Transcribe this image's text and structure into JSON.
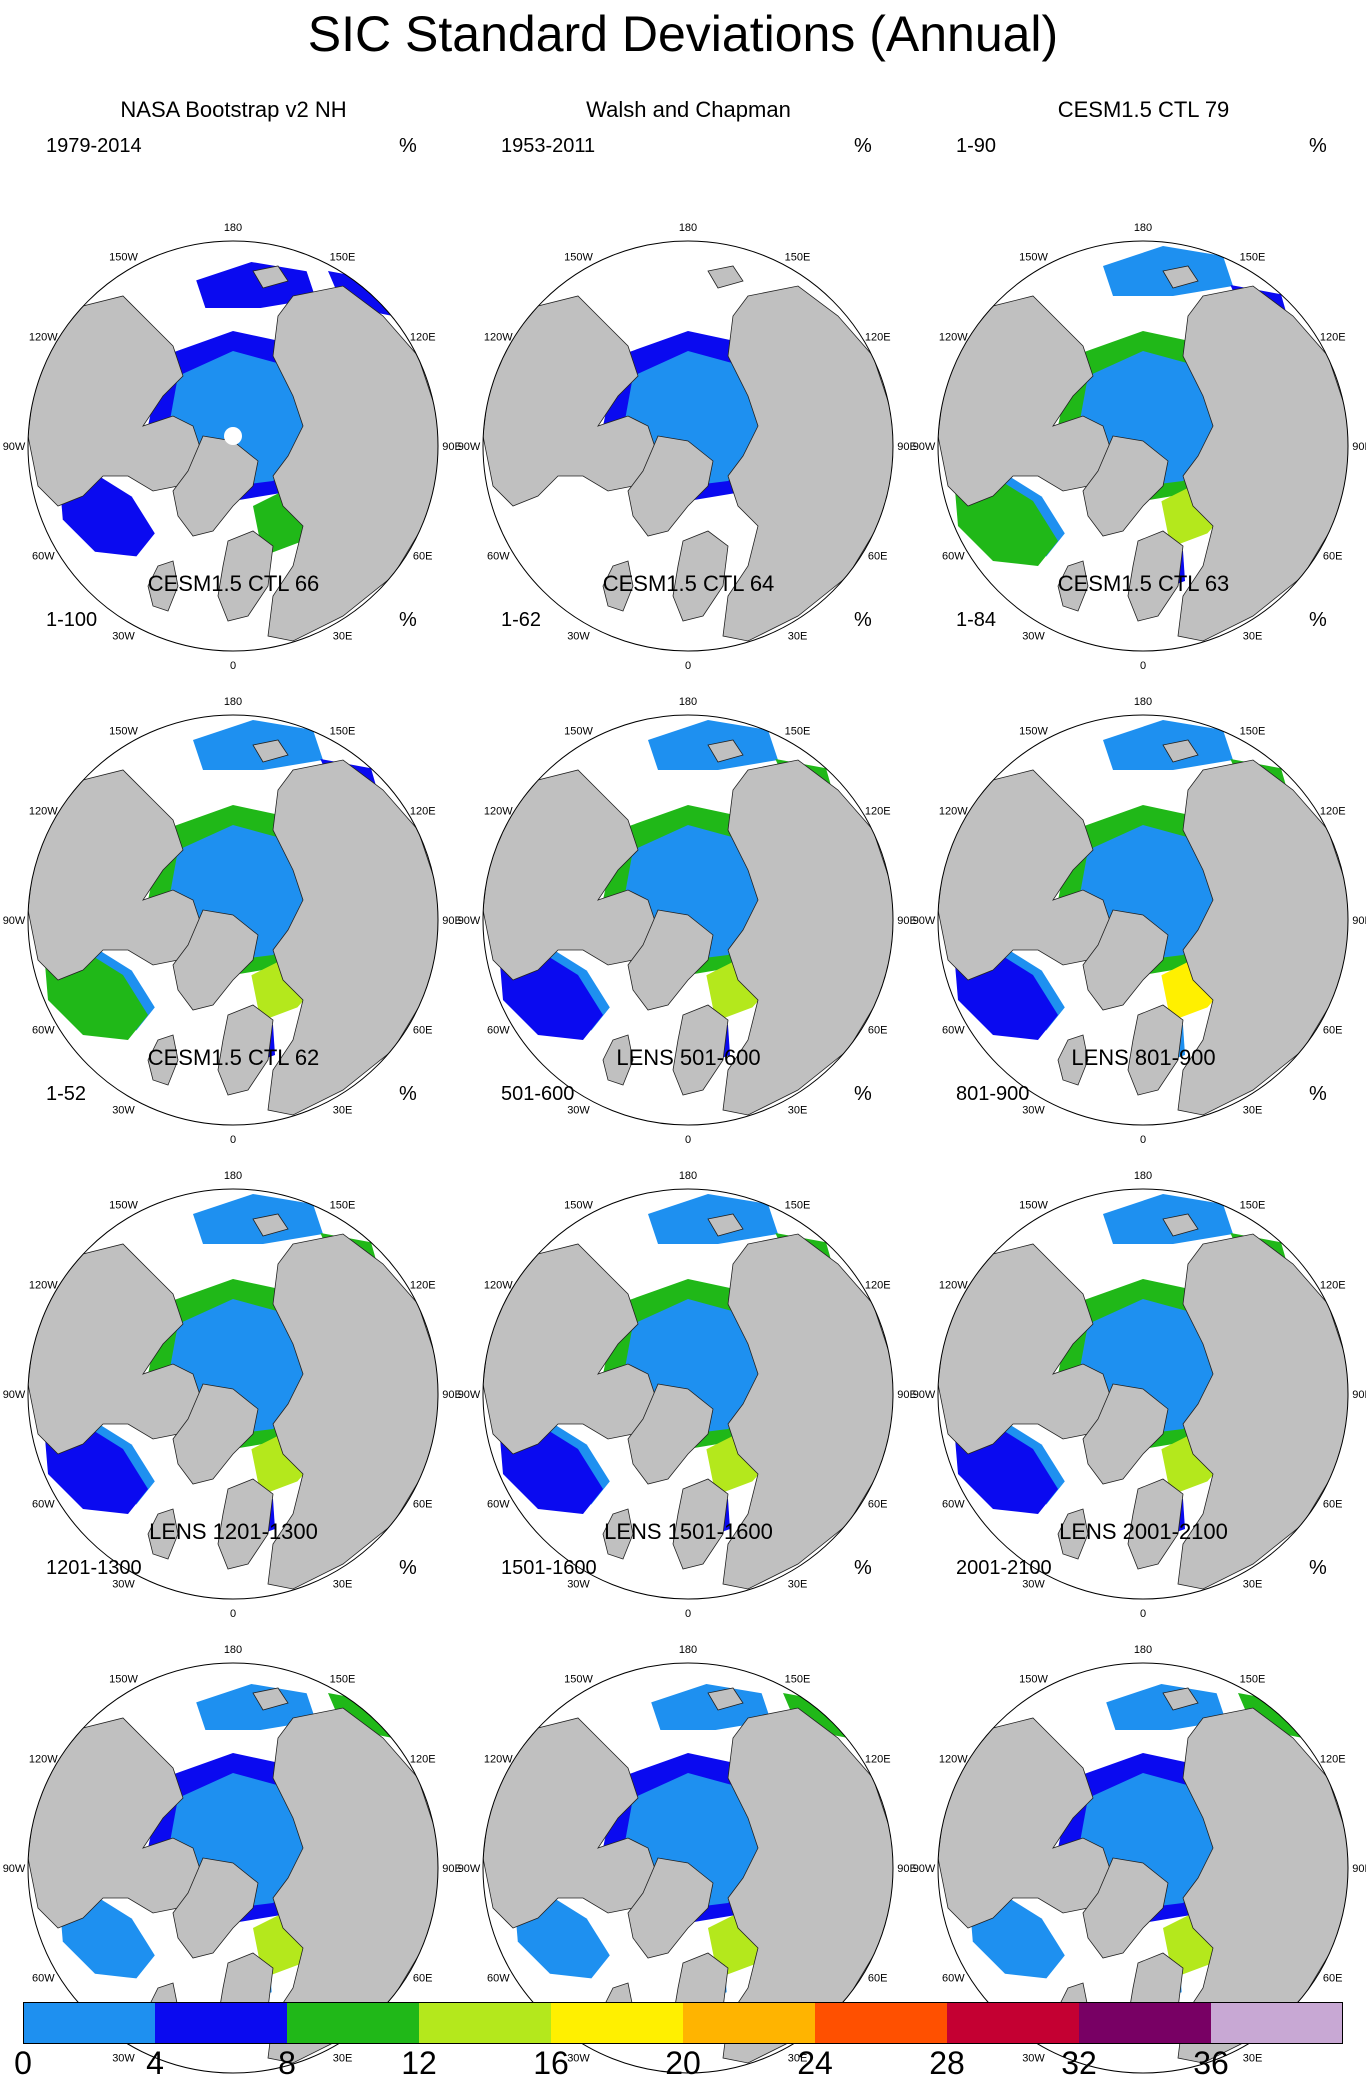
{
  "title": "SIC Standard Deviations (Annual)",
  "unit_label": "%",
  "longitude_labels": [
    "180",
    "150E",
    "120E",
    "90E",
    "60E",
    "30E",
    "0",
    "30W",
    "60W",
    "90W",
    "120W",
    "150W"
  ],
  "colors": {
    "land": "#c0c0c0",
    "ocean": "#ffffff",
    "coast": "#222222"
  },
  "chart_data": {
    "type": "heatmap",
    "projection": "north polar stereographic",
    "color_levels": [
      0,
      4,
      8,
      12,
      16,
      20,
      24,
      28,
      32,
      36
    ],
    "color_bins": [
      "#1e90f0",
      "#0a0af0",
      "#20b818",
      "#b4e81c",
      "#fff000",
      "#ffb400",
      "#ff5000",
      "#c40032",
      "#780064",
      "#c8a8d4"
    ],
    "panels": [
      {
        "title": "NASA Bootstrap v2 NH",
        "period": "1979-2014",
        "scenario": "obs_bootstrap"
      },
      {
        "title": "Walsh and Chapman",
        "period": "1953-2011",
        "scenario": "obs_walsh"
      },
      {
        "title": "CESM1.5 CTL 79",
        "period": "1-90",
        "scenario": "model_high"
      },
      {
        "title": "CESM1.5 CTL 66",
        "period": "1-100",
        "scenario": "model_high"
      },
      {
        "title": "CESM1.5 CTL 64",
        "period": "1-62",
        "scenario": "model_mid"
      },
      {
        "title": "CESM1.5 CTL 63",
        "period": "1-84",
        "scenario": "model_peak"
      },
      {
        "title": "CESM1.5 CTL 62",
        "period": "1-52",
        "scenario": "model_mid"
      },
      {
        "title": "LENS 501-600",
        "period": "501-600",
        "scenario": "model_mid"
      },
      {
        "title": "LENS 801-900",
        "period": "801-900",
        "scenario": "model_mid"
      },
      {
        "title": "LENS 1201-1300",
        "period": "1201-1300",
        "scenario": "model_low"
      },
      {
        "title": "LENS 1501-1600",
        "period": "1501-1600",
        "scenario": "model_low"
      },
      {
        "title": "LENS 2001-2100",
        "period": "2001-2100",
        "scenario": "model_low"
      }
    ]
  }
}
